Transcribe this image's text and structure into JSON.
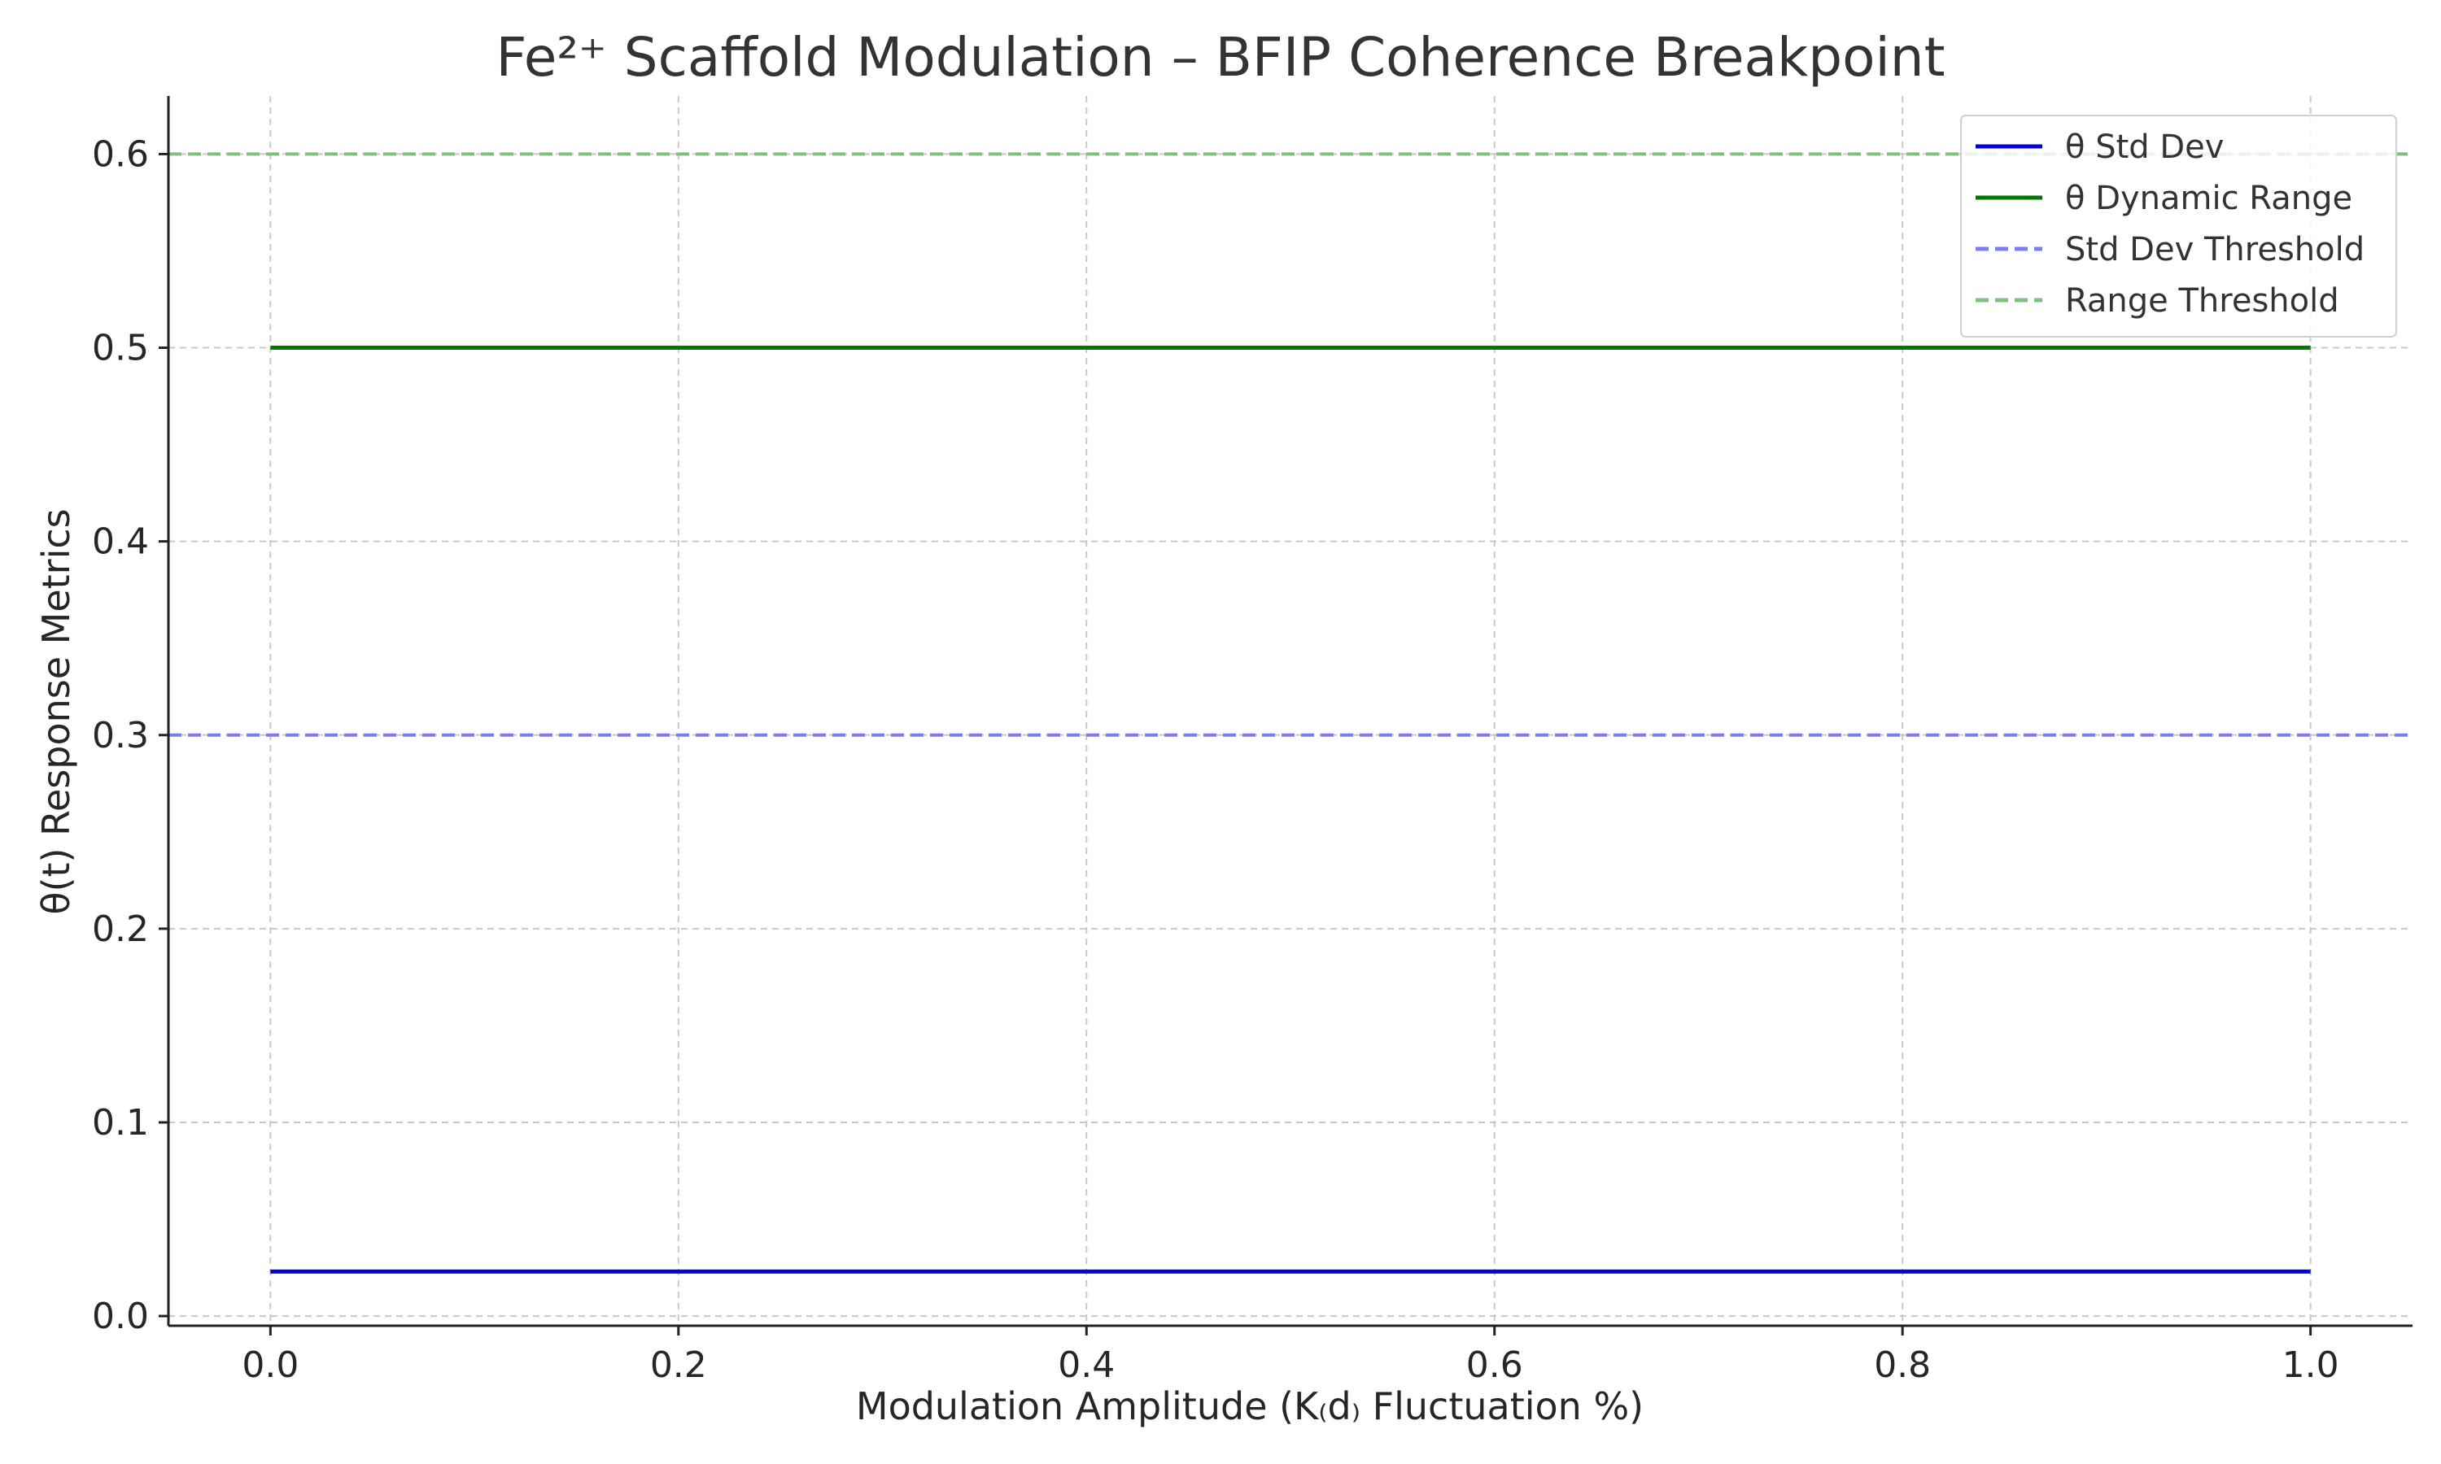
{
  "chart_data": {
    "type": "line",
    "title": "Fe²⁺ Scaffold Modulation – BFIP Coherence Breakpoint",
    "xlabel": "Modulation Amplitude (K₍d₎ Fluctuation %)",
    "ylabel": "θ(t) Response Metrics",
    "xlim": [
      -0.05,
      1.05
    ],
    "ylim": [
      -0.005,
      0.63
    ],
    "xticks": [
      0.0,
      0.2,
      0.4,
      0.6,
      0.8,
      1.0
    ],
    "xtick_labels": [
      "0.0",
      "0.2",
      "0.4",
      "0.6",
      "0.8",
      "1.0"
    ],
    "yticks": [
      0.0,
      0.1,
      0.2,
      0.3,
      0.4,
      0.5,
      0.6
    ],
    "ytick_labels": [
      "0.0",
      "0.1",
      "0.2",
      "0.3",
      "0.4",
      "0.5",
      "0.6"
    ],
    "grid": true,
    "legend_position": "top-right",
    "series": [
      {
        "name": "θ Std Dev",
        "x": [
          0.0,
          1.0
        ],
        "values": [
          0.023,
          0.023
        ],
        "color": "#0000dd",
        "style": "solid"
      },
      {
        "name": "θ Dynamic Range",
        "x": [
          0.0,
          1.0
        ],
        "values": [
          0.5,
          0.5
        ],
        "color": "#007700",
        "style": "solid"
      }
    ],
    "thresholds": [
      {
        "name": "Std Dev Threshold",
        "value": 0.3,
        "color": "#7b7bf2",
        "style": "dashed"
      },
      {
        "name": "Range Threshold",
        "value": 0.6,
        "color": "#7fbf7f",
        "style": "dashed"
      }
    ]
  }
}
